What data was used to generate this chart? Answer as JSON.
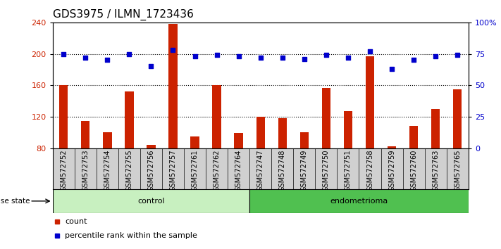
{
  "title": "GDS3975 / ILMN_1723436",
  "samples": [
    "GSM572752",
    "GSM572753",
    "GSM572754",
    "GSM572755",
    "GSM572756",
    "GSM572757",
    "GSM572761",
    "GSM572762",
    "GSM572764",
    "GSM572747",
    "GSM572748",
    "GSM572749",
    "GSM572750",
    "GSM572751",
    "GSM572758",
    "GSM572759",
    "GSM572760",
    "GSM572763",
    "GSM572765"
  ],
  "bar_values": [
    160,
    115,
    100,
    152,
    84,
    238,
    95,
    160,
    99,
    120,
    118,
    100,
    157,
    127,
    197,
    82,
    108,
    130,
    155
  ],
  "dot_values": [
    75,
    72,
    70,
    75,
    65,
    78,
    73,
    74,
    73,
    72,
    72,
    71,
    74,
    72,
    77,
    63,
    70,
    73,
    74
  ],
  "groups": [
    {
      "label": "control",
      "start": 0,
      "end": 9,
      "color": "#c8f0c0"
    },
    {
      "label": "endometrioma",
      "start": 9,
      "end": 19,
      "color": "#50c050"
    }
  ],
  "ylim_left": [
    80,
    240
  ],
  "ylim_right": [
    0,
    100
  ],
  "yticks_left": [
    80,
    120,
    160,
    200,
    240
  ],
  "yticks_right": [
    0,
    25,
    50,
    75,
    100
  ],
  "ytick_labels_right": [
    "0",
    "25",
    "50",
    "75",
    "100%"
  ],
  "bar_color": "#cc2200",
  "dot_color": "#0000cc",
  "grid_color": "black",
  "background_xtick": "#d0d0d0",
  "title_fontsize": 11,
  "tick_fontsize": 7,
  "legend_count_label": "count",
  "legend_pct_label": "percentile rank within the sample",
  "disease_state_label": "disease state",
  "gridlines_at": [
    120,
    160,
    200
  ]
}
